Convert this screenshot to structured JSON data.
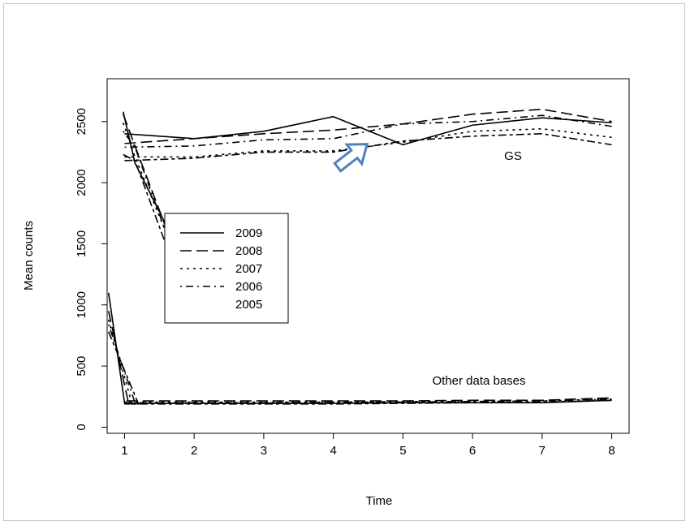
{
  "chart_data": {
    "type": "line",
    "xlabel": "Time",
    "ylabel": "Mean counts",
    "x": [
      1,
      2,
      3,
      4,
      5,
      6,
      7,
      8
    ],
    "xlim": [
      0.75,
      8.25
    ],
    "ylim": [
      -50,
      2850
    ],
    "x_ticks": [
      "1",
      "2",
      "3",
      "4",
      "5",
      "6",
      "7",
      "8"
    ],
    "y_ticks": [
      "0",
      "500",
      "1000",
      "1500",
      "2000",
      "2500"
    ],
    "grid": false,
    "legend_position": "center-left",
    "annotations": {
      "gs_label": "GS",
      "other_label": "Other data bases",
      "arrow_color": "#4f81bd"
    },
    "series": [
      {
        "name": "2009",
        "dash": "solid",
        "gs": [
          2400,
          2360,
          2420,
          2540,
          2310,
          2470,
          2530,
          2490
        ],
        "start_drop": [
          2580,
          2160,
          1400
        ],
        "other": [
          195,
          195,
          195,
          195,
          200,
          200,
          200,
          220
        ],
        "other_start": [
          1100,
          200
        ]
      },
      {
        "name": "2008",
        "dash": "longdash",
        "gs": [
          2320,
          2360,
          2400,
          2430,
          2480,
          2560,
          2600,
          2500
        ],
        "start_drop": [
          2560,
          2300,
          1250
        ],
        "other": [
          215,
          215,
          215,
          215,
          215,
          220,
          220,
          240
        ],
        "other_start": [
          950,
          215
        ]
      },
      {
        "name": "2007",
        "dash": "dotted",
        "gs": [
          2210,
          2210,
          2260,
          2260,
          2330,
          2420,
          2440,
          2370
        ],
        "start_drop": [
          2490,
          2210,
          1200
        ],
        "other": [
          205,
          205,
          205,
          205,
          210,
          210,
          215,
          230
        ],
        "other_start": [
          880,
          205
        ]
      },
      {
        "name": "2006",
        "dash": "dotdash",
        "gs": [
          2290,
          2300,
          2350,
          2360,
          2480,
          2500,
          2550,
          2460
        ],
        "start_drop": [
          2420,
          2290,
          1100
        ],
        "other": [
          200,
          200,
          200,
          205,
          205,
          210,
          215,
          230
        ],
        "other_start": [
          840,
          200
        ]
      },
      {
        "name": "2005",
        "dash": "twodash",
        "gs": [
          2180,
          2200,
          2250,
          2250,
          2340,
          2380,
          2400,
          2310
        ],
        "start_drop": [
          2230,
          2180,
          960
        ],
        "other": [
          190,
          190,
          190,
          190,
          195,
          200,
          205,
          220
        ],
        "other_start": [
          780,
          190
        ]
      }
    ]
  }
}
